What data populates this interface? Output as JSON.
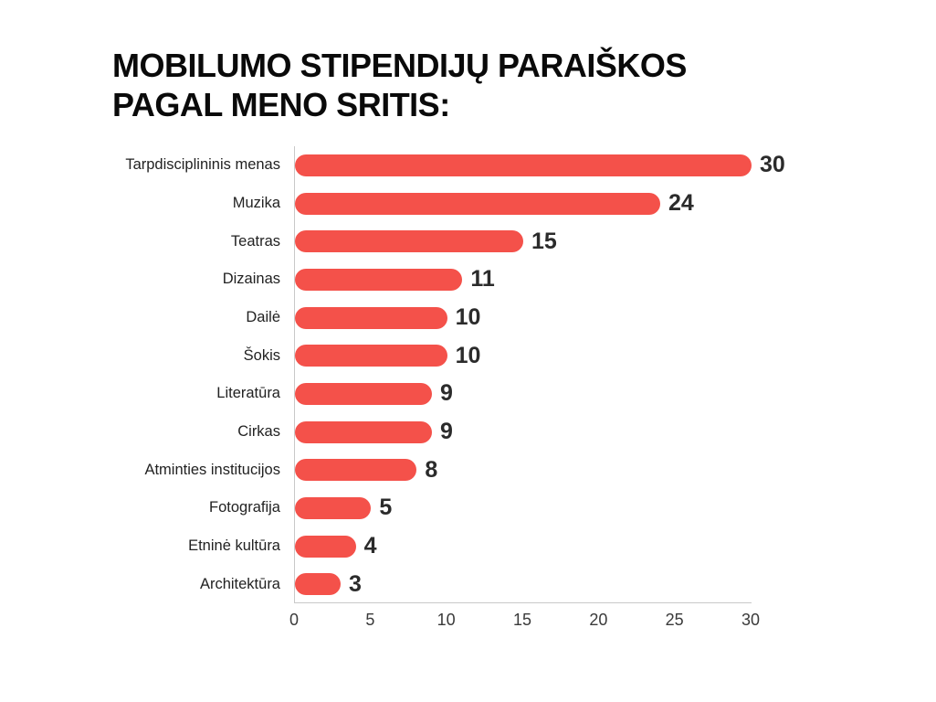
{
  "title": {
    "line1": "MOBILUMO STIPENDIJŲ PARAIŠKOS",
    "line2": "PAGAL MENO SRITIS:"
  },
  "chart_data": {
    "type": "bar",
    "orientation": "horizontal",
    "title": "MOBILUMO STIPENDIJŲ PARAIŠKOS PAGAL MENO SRITIS:",
    "categories": [
      "Tarpdisciplininis menas",
      "Muzika",
      "Teatras",
      "Dizainas",
      "Dailė",
      "Šokis",
      "Literatūra",
      "Cirkas",
      "Atminties institucijos",
      "Fotografija",
      "Etninė kultūra",
      "Architektūra"
    ],
    "values": [
      30,
      24,
      15,
      11,
      10,
      10,
      9,
      9,
      8,
      5,
      4,
      3
    ],
    "value_labels": [
      "30",
      "24",
      "15",
      "11",
      "10",
      "10",
      "9",
      "9",
      "8",
      "5",
      "4",
      "3"
    ],
    "xlabel": "",
    "ylabel": "",
    "xlim": [
      0,
      30
    ],
    "x_ticks": [
      0,
      5,
      10,
      15,
      20,
      25,
      30
    ],
    "grid": false,
    "legend": null,
    "bar_color": "#f4514a",
    "value_label_color": "#2b2b2b",
    "category_label_color": "#222222",
    "axis_color": "#c9c9c9",
    "background_color": "#ffffff"
  }
}
